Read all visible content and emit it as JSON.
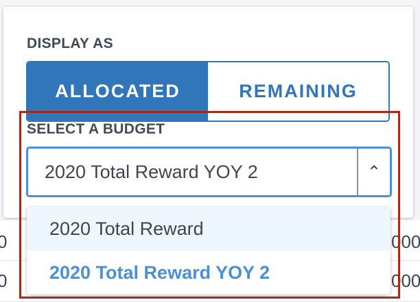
{
  "background_rows": [
    {
      "left": "0",
      "right": "000"
    },
    {
      "left": "0",
      "right": "000"
    }
  ],
  "display_as": {
    "label": "DISPLAY AS",
    "options": [
      "ALLOCATED",
      "REMAINING"
    ],
    "selected": "ALLOCATED"
  },
  "budget": {
    "label": "SELECT A BUDGET",
    "value": "2020 Total Reward YOY 2",
    "options": [
      "2020 Total Reward",
      "2020 Total Reward YOY 2"
    ],
    "hovered": "2020 Total Reward"
  },
  "colors": {
    "accent": "#3175bb",
    "focus": "#4a90d4",
    "highlight_box": "#a52a1a"
  }
}
